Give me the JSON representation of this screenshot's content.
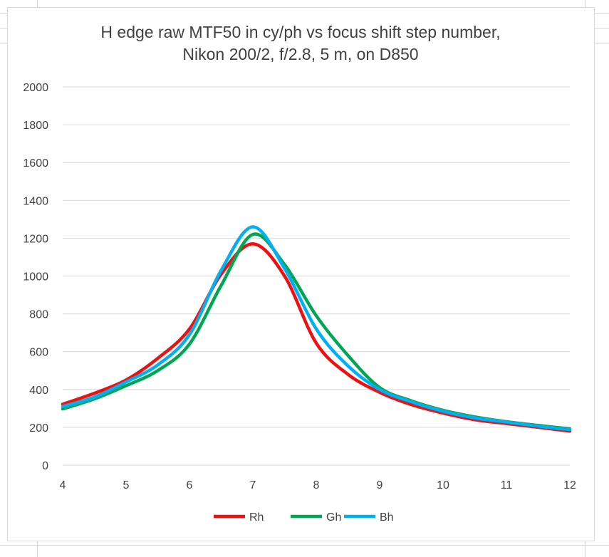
{
  "chart_data": {
    "type": "line",
    "title_lines": [
      "H edge raw MTF50 in cy/ph vs focus shift step number,",
      "Nikon 200/2, f/2.8, 5 m, on D850"
    ],
    "xlabel": "",
    "ylabel": "",
    "xlim": [
      4,
      12
    ],
    "ylim": [
      0,
      2000
    ],
    "x_ticks": [
      4,
      5,
      6,
      7,
      8,
      9,
      10,
      11,
      12
    ],
    "y_ticks": [
      0,
      200,
      400,
      600,
      800,
      1000,
      1200,
      1400,
      1600,
      1800,
      2000
    ],
    "grid": "horizontal",
    "legend_position": "bottom",
    "x": [
      4,
      4.5,
      5,
      5.5,
      6,
      6.5,
      7,
      7.5,
      8,
      8.5,
      9,
      9.5,
      10,
      10.5,
      11,
      11.5,
      12
    ],
    "series": [
      {
        "name": "Rh",
        "color": "#ee1111",
        "values": [
          322,
          380,
          450,
          565,
          720,
          1010,
          1170,
          1000,
          645,
          480,
          385,
          320,
          275,
          240,
          220,
          200,
          180
        ]
      },
      {
        "name": "Gh",
        "color": "#00a651",
        "values": [
          297,
          350,
          420,
          500,
          640,
          950,
          1220,
          1060,
          790,
          580,
          410,
          340,
          290,
          255,
          230,
          210,
          192
        ]
      },
      {
        "name": "Bh",
        "color": "#00b0f0",
        "values": [
          310,
          360,
          440,
          530,
          690,
          1030,
          1260,
          1040,
          720,
          525,
          400,
          335,
          285,
          250,
          228,
          206,
          188
        ]
      }
    ]
  }
}
